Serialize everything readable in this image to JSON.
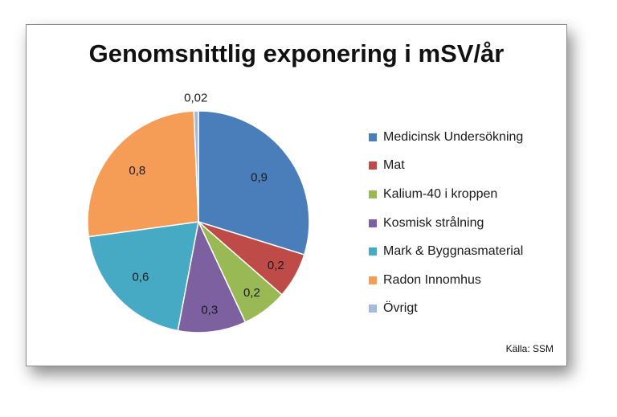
{
  "chart_data": {
    "type": "pie",
    "title": "Genomsnittlig exponering i mSV/år",
    "categories": [
      "Medicinsk Undersökning",
      "Mat",
      "Kalium-40 i kroppen",
      "Kosmisk strålning",
      "Mark & Byggnasmaterial",
      "Radon Innomhus",
      "Övrigt"
    ],
    "values": [
      0.9,
      0.2,
      0.2,
      0.3,
      0.6,
      0.8,
      0.02
    ],
    "data_labels": [
      "0,9",
      "0,2",
      "0,2",
      "0,3",
      "0,6",
      "0,8",
      "0,02"
    ],
    "colors": [
      "#4a7ebb",
      "#be4b48",
      "#98b954",
      "#7d60a0",
      "#46aac4",
      "#f59d56",
      "#a5b9df"
    ],
    "legend_position": "right",
    "start_angle_deg": 0,
    "direction": "clockwise"
  },
  "source_text": "Källa: SSM"
}
